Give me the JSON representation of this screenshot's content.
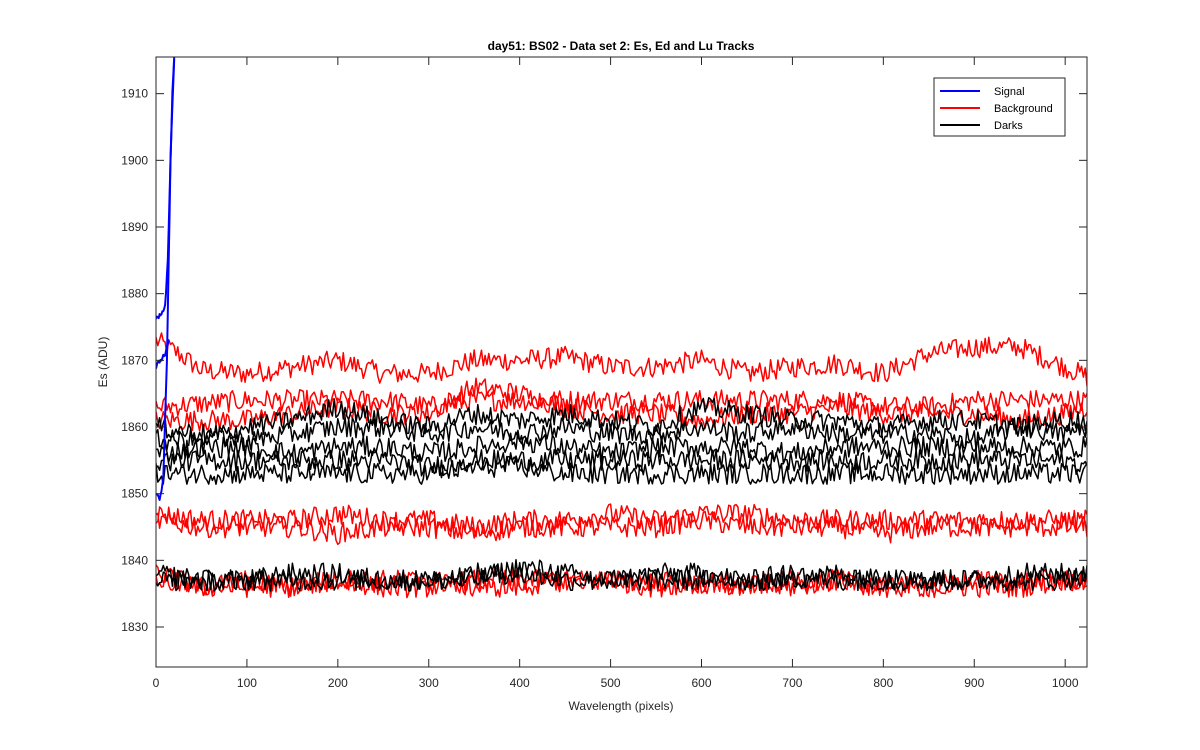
{
  "chart_data": {
    "type": "line",
    "title": "day51: BS02 - Data set 2: Es, Ed and Lu Tracks",
    "xlabel": "Wavelength (pixels)",
    "ylabel": "Es (ADU)",
    "xlim": [
      0,
      1024
    ],
    "ylim": [
      1824,
      1915.5
    ],
    "xticks": [
      0,
      100,
      200,
      300,
      400,
      500,
      600,
      700,
      800,
      900,
      1000
    ],
    "yticks": [
      1830,
      1840,
      1850,
      1860,
      1870,
      1880,
      1890,
      1900,
      1910
    ],
    "grid": false,
    "legend_position": "top-right",
    "legend": [
      {
        "name": "Signal",
        "color": "#0000ff"
      },
      {
        "name": "Background",
        "color": "#ff0000"
      },
      {
        "name": "Darks",
        "color": "#000000"
      }
    ],
    "series": [
      {
        "group": "Signal",
        "color": "#0000ff",
        "x": [
          0,
          5,
          10,
          13,
          15,
          17,
          19,
          20
        ],
        "y": [
          1876,
          1877,
          1878,
          1885,
          1895,
          1905,
          1912,
          1915.5
        ]
      },
      {
        "group": "Signal",
        "color": "#0000ff",
        "x": [
          0,
          4,
          8,
          12,
          14,
          16,
          18,
          20
        ],
        "y": [
          1850,
          1849,
          1852,
          1870,
          1885,
          1900,
          1910,
          1915.5
        ]
      },
      {
        "group": "Signal",
        "color": "#0000ff",
        "x": [
          0,
          5,
          10,
          14
        ],
        "y": [
          1869,
          1870,
          1871,
          1873
        ]
      },
      {
        "group": "Background",
        "color": "#ff0000",
        "x": [
          0,
          25,
          50,
          100,
          150,
          200,
          250,
          300,
          350,
          400,
          450,
          500,
          550,
          600,
          650,
          700,
          750,
          800,
          850,
          900,
          950,
          1000,
          1024
        ],
        "y": [
          1873,
          1871,
          1868.5,
          1868,
          1869,
          1870,
          1868,
          1868,
          1870,
          1870,
          1870.5,
          1869,
          1869,
          1870,
          1868,
          1869,
          1869.5,
          1868,
          1871,
          1872,
          1872,
          1869,
          1867.5
        ]
      },
      {
        "group": "Background",
        "color": "#ff0000",
        "x": [
          0,
          50,
          100,
          150,
          200,
          250,
          300,
          350,
          400,
          450,
          500,
          550,
          600,
          650,
          700,
          750,
          800,
          850,
          900,
          950,
          1000,
          1024
        ],
        "y": [
          1863,
          1863.5,
          1864,
          1864,
          1864,
          1864,
          1863,
          1864,
          1864,
          1864,
          1864,
          1864,
          1864,
          1864,
          1864,
          1864,
          1863,
          1863,
          1864,
          1864,
          1864,
          1864
        ]
      },
      {
        "group": "Background",
        "color": "#ff0000",
        "x": [
          0,
          50,
          100,
          150,
          200,
          250,
          300,
          350,
          400,
          450,
          500,
          550,
          600,
          650,
          700,
          750,
          800,
          850,
          900,
          950,
          1000,
          1024
        ],
        "y": [
          1861,
          1861,
          1861,
          1862,
          1863,
          1862,
          1862,
          1866,
          1865,
          1863,
          1862,
          1862,
          1861,
          1862,
          1862,
          1863,
          1862,
          1862,
          1862,
          1861,
          1862,
          1863
        ]
      },
      {
        "group": "Background",
        "color": "#ff0000",
        "x": [
          0,
          50,
          100,
          150,
          200,
          250,
          300,
          350,
          400,
          450,
          500,
          550,
          600,
          650,
          700,
          750,
          800,
          850,
          900,
          950,
          1000,
          1024
        ],
        "y": [
          1847,
          1846,
          1846,
          1846,
          1847,
          1846,
          1846,
          1845,
          1846,
          1846,
          1847,
          1846,
          1847,
          1847,
          1846,
          1846,
          1846,
          1846,
          1846,
          1846,
          1846,
          1846
        ]
      },
      {
        "group": "Background",
        "color": "#ff0000",
        "x": [
          0,
          50,
          100,
          150,
          200,
          250,
          300,
          350,
          400,
          450,
          500,
          550,
          600,
          650,
          700,
          750,
          800,
          850,
          900,
          950,
          1000,
          1024
        ],
        "y": [
          1846,
          1845,
          1845,
          1845,
          1844,
          1845,
          1845,
          1844,
          1845,
          1845,
          1845,
          1845,
          1846,
          1845,
          1845,
          1845,
          1844,
          1845,
          1845,
          1845,
          1845,
          1845
        ]
      },
      {
        "group": "Background",
        "color": "#ff0000",
        "x": [
          0,
          50,
          100,
          150,
          200,
          250,
          300,
          350,
          400,
          450,
          500,
          550,
          600,
          650,
          700,
          750,
          800,
          850,
          900,
          950,
          1000,
          1024
        ],
        "y": [
          1838,
          1836,
          1836,
          1836,
          1837,
          1836,
          1836,
          1837,
          1837,
          1837,
          1837,
          1836,
          1837,
          1836,
          1836,
          1837,
          1836,
          1836,
          1836,
          1836,
          1837,
          1837
        ]
      },
      {
        "group": "Background",
        "color": "#ff0000",
        "x": [
          0,
          50,
          100,
          150,
          200,
          250,
          300,
          350,
          400,
          450,
          500,
          550,
          600,
          650,
          700,
          750,
          800,
          850,
          900,
          950,
          1000,
          1024
        ],
        "y": [
          1837,
          1836,
          1837,
          1836,
          1837,
          1837,
          1837,
          1836,
          1836,
          1837,
          1837,
          1837,
          1836,
          1836,
          1837,
          1837,
          1836,
          1836,
          1837,
          1837,
          1837,
          1837
        ]
      },
      {
        "group": "Darks",
        "color": "#000000",
        "x": [
          0,
          50,
          100,
          150,
          200,
          250,
          300,
          350,
          400,
          450,
          500,
          550,
          600,
          650,
          700,
          750,
          800,
          850,
          900,
          950,
          1000,
          1024
        ],
        "y": [
          1858,
          1858,
          1860,
          1861,
          1863,
          1861,
          1860,
          1862,
          1861,
          1862,
          1861,
          1860,
          1863,
          1862,
          1861,
          1861,
          1860,
          1861,
          1861,
          1860,
          1861,
          1861
        ]
      },
      {
        "group": "Darks",
        "color": "#000000",
        "x": [
          0,
          50,
          100,
          150,
          200,
          250,
          300,
          350,
          400,
          450,
          500,
          550,
          600,
          650,
          700,
          750,
          800,
          850,
          900,
          950,
          1000,
          1024
        ],
        "y": [
          1860,
          1859,
          1858,
          1859,
          1860,
          1860,
          1859,
          1860,
          1859,
          1860,
          1859,
          1859,
          1860,
          1859,
          1860,
          1859,
          1859,
          1859,
          1858,
          1860,
          1859,
          1860
        ]
      },
      {
        "group": "Darks",
        "color": "#000000",
        "x": [
          0,
          50,
          100,
          150,
          200,
          250,
          300,
          350,
          400,
          450,
          500,
          550,
          600,
          650,
          700,
          750,
          800,
          850,
          900,
          950,
          1000,
          1024
        ],
        "y": [
          1856,
          1857,
          1857,
          1856,
          1857,
          1857,
          1856,
          1857,
          1858,
          1857,
          1856,
          1857,
          1857,
          1857,
          1856,
          1857,
          1857,
          1857,
          1857,
          1857,
          1857,
          1857
        ]
      },
      {
        "group": "Darks",
        "color": "#000000",
        "x": [
          0,
          50,
          100,
          150,
          200,
          250,
          300,
          350,
          400,
          450,
          500,
          550,
          600,
          650,
          700,
          750,
          800,
          850,
          900,
          950,
          1000,
          1024
        ],
        "y": [
          1855,
          1855,
          1855,
          1855,
          1855,
          1855,
          1854,
          1855,
          1855,
          1855,
          1855,
          1855,
          1855,
          1855,
          1855,
          1855,
          1855,
          1855,
          1855,
          1855,
          1855,
          1854
        ]
      },
      {
        "group": "Darks",
        "color": "#000000",
        "x": [
          0,
          50,
          100,
          150,
          200,
          250,
          300,
          350,
          400,
          450,
          500,
          550,
          600,
          650,
          700,
          750,
          800,
          850,
          900,
          950,
          1000,
          1024
        ],
        "y": [
          1853,
          1853,
          1853,
          1853,
          1853,
          1853,
          1853,
          1854,
          1854,
          1853,
          1853,
          1853,
          1853,
          1853,
          1853,
          1853,
          1853,
          1853,
          1853,
          1853,
          1853,
          1853
        ]
      },
      {
        "group": "Darks",
        "color": "#000000",
        "x": [
          0,
          50,
          100,
          150,
          200,
          250,
          300,
          350,
          400,
          450,
          500,
          550,
          600,
          650,
          700,
          750,
          800,
          850,
          900,
          950,
          1000,
          1024
        ],
        "y": [
          1838,
          1837,
          1837,
          1838,
          1838,
          1837,
          1837,
          1837,
          1839,
          1838,
          1837,
          1838,
          1838,
          1837,
          1837,
          1838,
          1837,
          1837,
          1837,
          1837,
          1837,
          1838
        ]
      },
      {
        "group": "Darks",
        "color": "#000000",
        "x": [
          0,
          50,
          100,
          150,
          200,
          250,
          300,
          350,
          400,
          450,
          500,
          550,
          600,
          650,
          700,
          750,
          800,
          850,
          900,
          950,
          1000,
          1024
        ],
        "y": [
          1837,
          1837,
          1837,
          1837,
          1837,
          1837,
          1837,
          1838,
          1838,
          1837,
          1837,
          1837,
          1837,
          1837,
          1838,
          1837,
          1837,
          1837,
          1837,
          1838,
          1838,
          1838
        ]
      }
    ]
  }
}
